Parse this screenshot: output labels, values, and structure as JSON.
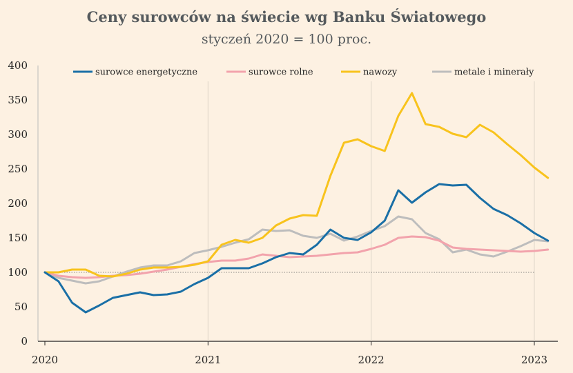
{
  "chart_data": {
    "type": "line",
    "title": "Ceny surowców na świecie wg Banku Światowego",
    "subtitle": "styczeń 2020 = 100 proc.",
    "xlabel": "",
    "ylabel": "",
    "ylim": [
      0,
      400
    ],
    "yticks": [
      0,
      50,
      100,
      150,
      200,
      250,
      300,
      350,
      400
    ],
    "x_tick_labels": [
      "2020",
      "2021",
      "2022",
      "2023"
    ],
    "x_range_months": [
      0,
      37
    ],
    "grid": "vertical at year boundaries",
    "reference_line": {
      "y": 100,
      "style": "dotted"
    },
    "legend_position": "top",
    "series": [
      {
        "name": "surowce energetyczne",
        "color": "#1a6fa6",
        "values": [
          100,
          87,
          56,
          42,
          52,
          63,
          67,
          71,
          67,
          68,
          72,
          83,
          92,
          106,
          106,
          106,
          113,
          122,
          128,
          126,
          140,
          162,
          150,
          147,
          158,
          175,
          219,
          201,
          216,
          228,
          226,
          227,
          208,
          192,
          183,
          171,
          157,
          146
        ]
      },
      {
        "name": "surowce rolne",
        "color": "#f2a3ac",
        "values": [
          100,
          95,
          93,
          92,
          93,
          95,
          96,
          98,
          101,
          104,
          108,
          112,
          115,
          117,
          117,
          120,
          126,
          124,
          122,
          123,
          124,
          126,
          128,
          129,
          134,
          140,
          150,
          152,
          151,
          146,
          136,
          134,
          133,
          132,
          131,
          130,
          131,
          133
        ]
      },
      {
        "name": "nawozy",
        "color": "#f8c31d",
        "values": [
          100,
          100,
          104,
          104,
          95,
          94,
          98,
          104,
          107,
          107,
          108,
          111,
          116,
          140,
          147,
          143,
          150,
          168,
          178,
          183,
          182,
          240,
          288,
          293,
          283,
          276,
          327,
          360,
          315,
          311,
          301,
          296,
          314,
          303,
          286,
          270,
          252,
          237
        ]
      },
      {
        "name": "metale i minerały",
        "color": "#bdbdbd",
        "values": [
          100,
          92,
          88,
          84,
          87,
          94,
          101,
          107,
          110,
          110,
          116,
          128,
          132,
          137,
          143,
          148,
          162,
          160,
          161,
          153,
          150,
          156,
          146,
          152,
          160,
          167,
          181,
          177,
          157,
          148,
          129,
          133,
          126,
          123,
          130,
          138,
          147,
          145
        ]
      }
    ]
  }
}
